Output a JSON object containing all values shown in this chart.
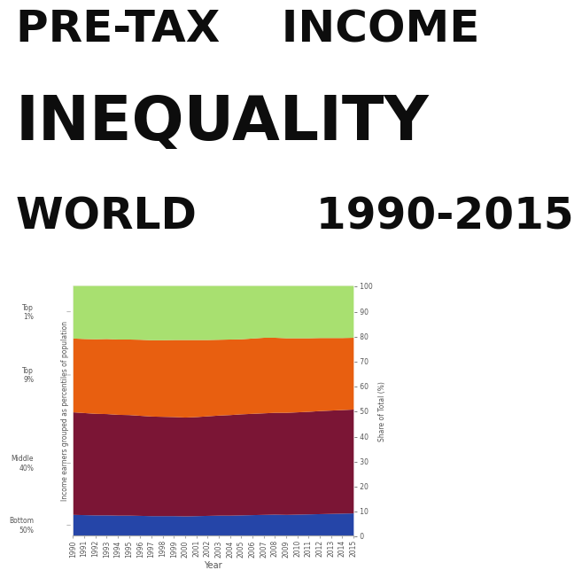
{
  "years": [
    1990,
    1991,
    1992,
    1993,
    1994,
    1995,
    1996,
    1997,
    1998,
    1999,
    2000,
    2001,
    2002,
    2003,
    2004,
    2005,
    2006,
    2007,
    2008,
    2009,
    2010,
    2011,
    2012,
    2013,
    2014,
    2015
  ],
  "bottom50": [
    8.5,
    8.4,
    8.3,
    8.3,
    8.2,
    8.2,
    8.1,
    8.0,
    8.0,
    8.0,
    7.9,
    8.0,
    8.1,
    8.2,
    8.2,
    8.3,
    8.4,
    8.5,
    8.6,
    8.5,
    8.6,
    8.7,
    8.8,
    8.9,
    9.0,
    9.1
  ],
  "middle40": [
    41.0,
    40.8,
    40.6,
    40.5,
    40.3,
    40.2,
    40.0,
    39.8,
    39.7,
    39.6,
    39.5,
    39.6,
    39.8,
    40.0,
    40.2,
    40.4,
    40.5,
    40.6,
    40.7,
    40.8,
    40.9,
    41.0,
    41.2,
    41.3,
    41.4,
    41.5
  ],
  "top9": [
    29.5,
    29.6,
    29.8,
    30.0,
    30.1,
    30.2,
    30.4,
    30.5,
    30.6,
    30.8,
    31.0,
    30.8,
    30.5,
    30.3,
    30.2,
    30.0,
    30.1,
    30.2,
    30.0,
    29.8,
    29.6,
    29.4,
    29.2,
    29.0,
    28.8,
    28.7
  ],
  "top1": [
    21.0,
    21.2,
    21.3,
    21.2,
    21.4,
    21.4,
    21.5,
    21.7,
    21.7,
    21.6,
    21.6,
    21.6,
    21.6,
    21.5,
    21.4,
    21.3,
    21.0,
    20.7,
    20.7,
    20.9,
    20.9,
    20.9,
    20.8,
    20.8,
    20.8,
    20.7
  ],
  "colors": {
    "bottom50": "#2545a8",
    "middle40": "#7b1535",
    "top9": "#e85f10",
    "top1": "#a8e070"
  },
  "title_line1": "PRE-TAX    INCOME",
  "title_line2": "INEQUALITY",
  "title_line3": "WORLD        1990-2015",
  "xlabel": "Year",
  "ylabel_left": "Income earners grouped as percentiles of population",
  "ylabel_right": "Share of Total (%)",
  "labels": {
    "bottom50": "Bottom\n50%",
    "middle40": "Middle\n40%",
    "top9": "Top\n9%",
    "top1": "Top\n1%"
  },
  "background_color": "#f0f0eb",
  "title_background": "#ffffff",
  "yticks": [
    0,
    10,
    20,
    30,
    40,
    50,
    60,
    70,
    80,
    90,
    100
  ]
}
